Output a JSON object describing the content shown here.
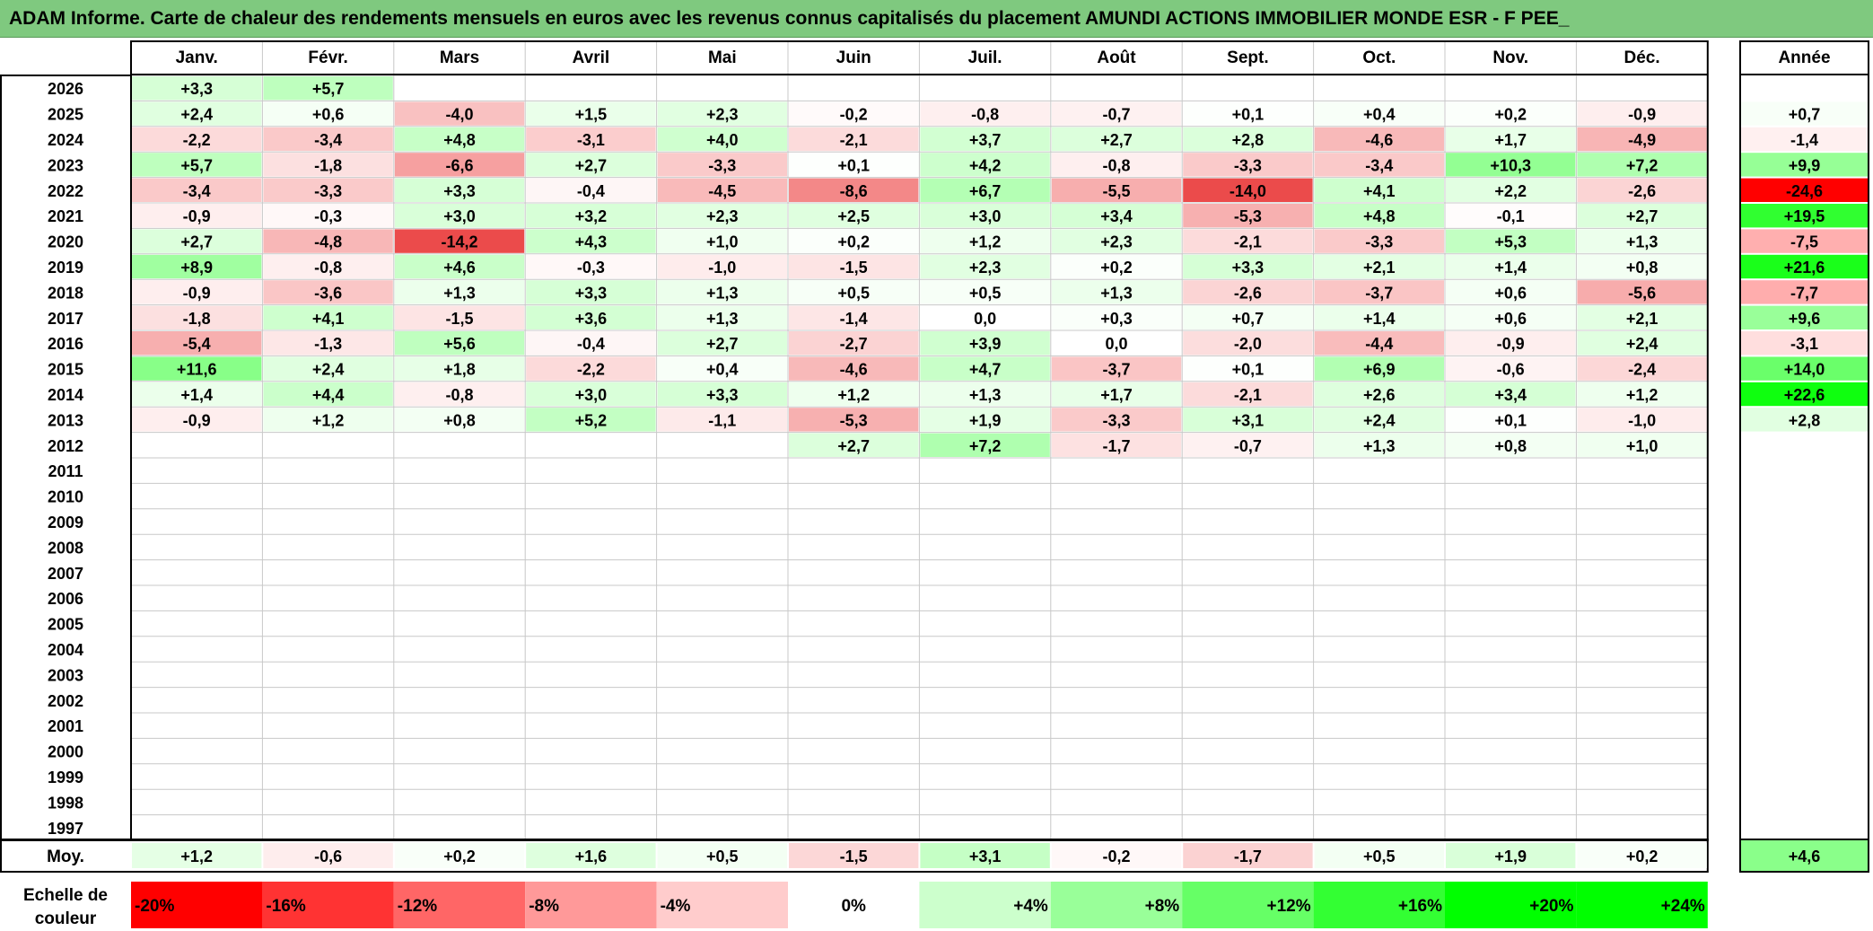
{
  "title": "ADAM Informe. Carte de chaleur des rendements mensuels en euros avec les revenus connus capitalisés du placement AMUNDI ACTIONS IMMOBILIER MONDE ESR - F PEE_",
  "chart_data": {
    "type": "heatmap",
    "months": [
      "Janv.",
      "Févr.",
      "Mars",
      "Avril",
      "Mai",
      "Juin",
      "Juil.",
      "Août",
      "Sept.",
      "Oct.",
      "Nov.",
      "Déc."
    ],
    "year_header": "Année",
    "avg_label": "Moy.",
    "rows": [
      {
        "year": "2026",
        "values": [
          "+3,3",
          "+5,7",
          null,
          null,
          null,
          null,
          null,
          null,
          null,
          null,
          null,
          null
        ],
        "annual": null
      },
      {
        "year": "2025",
        "values": [
          "+2,4",
          "+0,6",
          "-4,0",
          "+1,5",
          "+2,3",
          "-0,2",
          "-0,8",
          "-0,7",
          "+0,1",
          "+0,4",
          "+0,2",
          "-0,9"
        ],
        "annual": "+0,7"
      },
      {
        "year": "2024",
        "values": [
          "-2,2",
          "-3,4",
          "+4,8",
          "-3,1",
          "+4,0",
          "-2,1",
          "+3,7",
          "+2,7",
          "+2,8",
          "-4,6",
          "+1,7",
          "-4,9"
        ],
        "annual": "-1,4"
      },
      {
        "year": "2023",
        "values": [
          "+5,7",
          "-1,8",
          "-6,6",
          "+2,7",
          "-3,3",
          "+0,1",
          "+4,2",
          "-0,8",
          "-3,3",
          "-3,4",
          "+10,3",
          "+7,2"
        ],
        "annual": "+9,9"
      },
      {
        "year": "2022",
        "values": [
          "-3,4",
          "-3,3",
          "+3,3",
          "-0,4",
          "-4,5",
          "-8,6",
          "+6,7",
          "-5,5",
          "-14,0",
          "+4,1",
          "+2,2",
          "-2,6"
        ],
        "annual": "-24,6"
      },
      {
        "year": "2021",
        "values": [
          "-0,9",
          "-0,3",
          "+3,0",
          "+3,2",
          "+2,3",
          "+2,5",
          "+3,0",
          "+3,4",
          "-5,3",
          "+4,8",
          "-0,1",
          "+2,7"
        ],
        "annual": "+19,5"
      },
      {
        "year": "2020",
        "values": [
          "+2,7",
          "-4,8",
          "-14,2",
          "+4,3",
          "+1,0",
          "+0,2",
          "+1,2",
          "+2,3",
          "-2,1",
          "-3,3",
          "+5,3",
          "+1,3"
        ],
        "annual": "-7,5"
      },
      {
        "year": "2019",
        "values": [
          "+8,9",
          "-0,8",
          "+4,6",
          "-0,3",
          "-1,0",
          "-1,5",
          "+2,3",
          "+0,2",
          "+3,3",
          "+2,1",
          "+1,4",
          "+0,8"
        ],
        "annual": "+21,6"
      },
      {
        "year": "2018",
        "values": [
          "-0,9",
          "-3,6",
          "+1,3",
          "+3,3",
          "+1,3",
          "+0,5",
          "+0,5",
          "+1,3",
          "-2,6",
          "-3,7",
          "+0,6",
          "-5,6"
        ],
        "annual": "-7,7"
      },
      {
        "year": "2017",
        "values": [
          "-1,8",
          "+4,1",
          "-1,5",
          "+3,6",
          "+1,3",
          "-1,4",
          "0,0",
          "+0,3",
          "+0,7",
          "+1,4",
          "+0,6",
          "+2,1"
        ],
        "annual": "+9,6"
      },
      {
        "year": "2016",
        "values": [
          "-5,4",
          "-1,3",
          "+5,6",
          "-0,4",
          "+2,7",
          "-2,7",
          "+3,9",
          "0,0",
          "-2,0",
          "-4,4",
          "-0,9",
          "+2,4"
        ],
        "annual": "-3,1"
      },
      {
        "year": "2015",
        "values": [
          "+11,6",
          "+2,4",
          "+1,8",
          "-2,2",
          "+0,4",
          "-4,6",
          "+4,7",
          "-3,7",
          "+0,1",
          "+6,9",
          "-0,6",
          "-2,4"
        ],
        "annual": "+14,0"
      },
      {
        "year": "2014",
        "values": [
          "+1,4",
          "+4,4",
          "-0,8",
          "+3,0",
          "+3,3",
          "+1,2",
          "+1,3",
          "+1,7",
          "-2,1",
          "+2,6",
          "+3,4",
          "+1,2"
        ],
        "annual": "+22,6"
      },
      {
        "year": "2013",
        "values": [
          "-0,9",
          "+1,2",
          "+0,8",
          "+5,2",
          "-1,1",
          "-5,3",
          "+1,9",
          "-3,3",
          "+3,1",
          "+2,4",
          "+0,1",
          "-1,0"
        ],
        "annual": "+2,8"
      },
      {
        "year": "2012",
        "values": [
          null,
          null,
          null,
          null,
          null,
          "+2,7",
          "+7,2",
          "-1,7",
          "-0,7",
          "+1,3",
          "+0,8",
          "+1,0"
        ],
        "annual": null
      },
      {
        "year": "2011",
        "values": [
          null,
          null,
          null,
          null,
          null,
          null,
          null,
          null,
          null,
          null,
          null,
          null
        ],
        "annual": null
      },
      {
        "year": "2010",
        "values": [
          null,
          null,
          null,
          null,
          null,
          null,
          null,
          null,
          null,
          null,
          null,
          null
        ],
        "annual": null
      },
      {
        "year": "2009",
        "values": [
          null,
          null,
          null,
          null,
          null,
          null,
          null,
          null,
          null,
          null,
          null,
          null
        ],
        "annual": null
      },
      {
        "year": "2008",
        "values": [
          null,
          null,
          null,
          null,
          null,
          null,
          null,
          null,
          null,
          null,
          null,
          null
        ],
        "annual": null
      },
      {
        "year": "2007",
        "values": [
          null,
          null,
          null,
          null,
          null,
          null,
          null,
          null,
          null,
          null,
          null,
          null
        ],
        "annual": null
      },
      {
        "year": "2006",
        "values": [
          null,
          null,
          null,
          null,
          null,
          null,
          null,
          null,
          null,
          null,
          null,
          null
        ],
        "annual": null
      },
      {
        "year": "2005",
        "values": [
          null,
          null,
          null,
          null,
          null,
          null,
          null,
          null,
          null,
          null,
          null,
          null
        ],
        "annual": null
      },
      {
        "year": "2004",
        "values": [
          null,
          null,
          null,
          null,
          null,
          null,
          null,
          null,
          null,
          null,
          null,
          null
        ],
        "annual": null
      },
      {
        "year": "2003",
        "values": [
          null,
          null,
          null,
          null,
          null,
          null,
          null,
          null,
          null,
          null,
          null,
          null
        ],
        "annual": null
      },
      {
        "year": "2002",
        "values": [
          null,
          null,
          null,
          null,
          null,
          null,
          null,
          null,
          null,
          null,
          null,
          null
        ],
        "annual": null
      },
      {
        "year": "2001",
        "values": [
          null,
          null,
          null,
          null,
          null,
          null,
          null,
          null,
          null,
          null,
          null,
          null
        ],
        "annual": null
      },
      {
        "year": "2000",
        "values": [
          null,
          null,
          null,
          null,
          null,
          null,
          null,
          null,
          null,
          null,
          null,
          null
        ],
        "annual": null
      },
      {
        "year": "1999",
        "values": [
          null,
          null,
          null,
          null,
          null,
          null,
          null,
          null,
          null,
          null,
          null,
          null
        ],
        "annual": null
      },
      {
        "year": "1998",
        "values": [
          null,
          null,
          null,
          null,
          null,
          null,
          null,
          null,
          null,
          null,
          null,
          null
        ],
        "annual": null
      },
      {
        "year": "1997",
        "values": [
          null,
          null,
          null,
          null,
          null,
          null,
          null,
          null,
          null,
          null,
          null,
          null
        ],
        "annual": null
      }
    ],
    "averages": [
      "+1,2",
      "-0,6",
      "+0,2",
      "+1,6",
      "+0,5",
      "-1,5",
      "+3,1",
      "-0,2",
      "-1,7",
      "+0,5",
      "+1,9",
      "+0,2"
    ],
    "average_annual": "+4,6",
    "scale_label": "Echelle de couleur",
    "scale": [
      {
        "label": "-20%",
        "value": -20,
        "color": "#ff0000"
      },
      {
        "label": "-16%",
        "value": -16,
        "color": "#ff3333"
      },
      {
        "label": "-12%",
        "value": -12,
        "color": "#ff6666"
      },
      {
        "label": "-8%",
        "value": -8,
        "color": "#ff9999"
      },
      {
        "label": "-4%",
        "value": -4,
        "color": "#ffcccc"
      },
      {
        "label": "0%",
        "value": 0,
        "color": "#ffffff"
      },
      {
        "label": "+4%",
        "value": 4,
        "color": "#ccffcc"
      },
      {
        "label": "+8%",
        "value": 8,
        "color": "#99ff99"
      },
      {
        "label": "+12%",
        "value": 12,
        "color": "#66ff66"
      },
      {
        "label": "+16%",
        "value": 16,
        "color": "#33ff33"
      },
      {
        "label": "+20%",
        "value": 20,
        "color": "#00ff00"
      },
      {
        "label": "+24%",
        "value": 24,
        "color": "#00ff00"
      }
    ]
  }
}
